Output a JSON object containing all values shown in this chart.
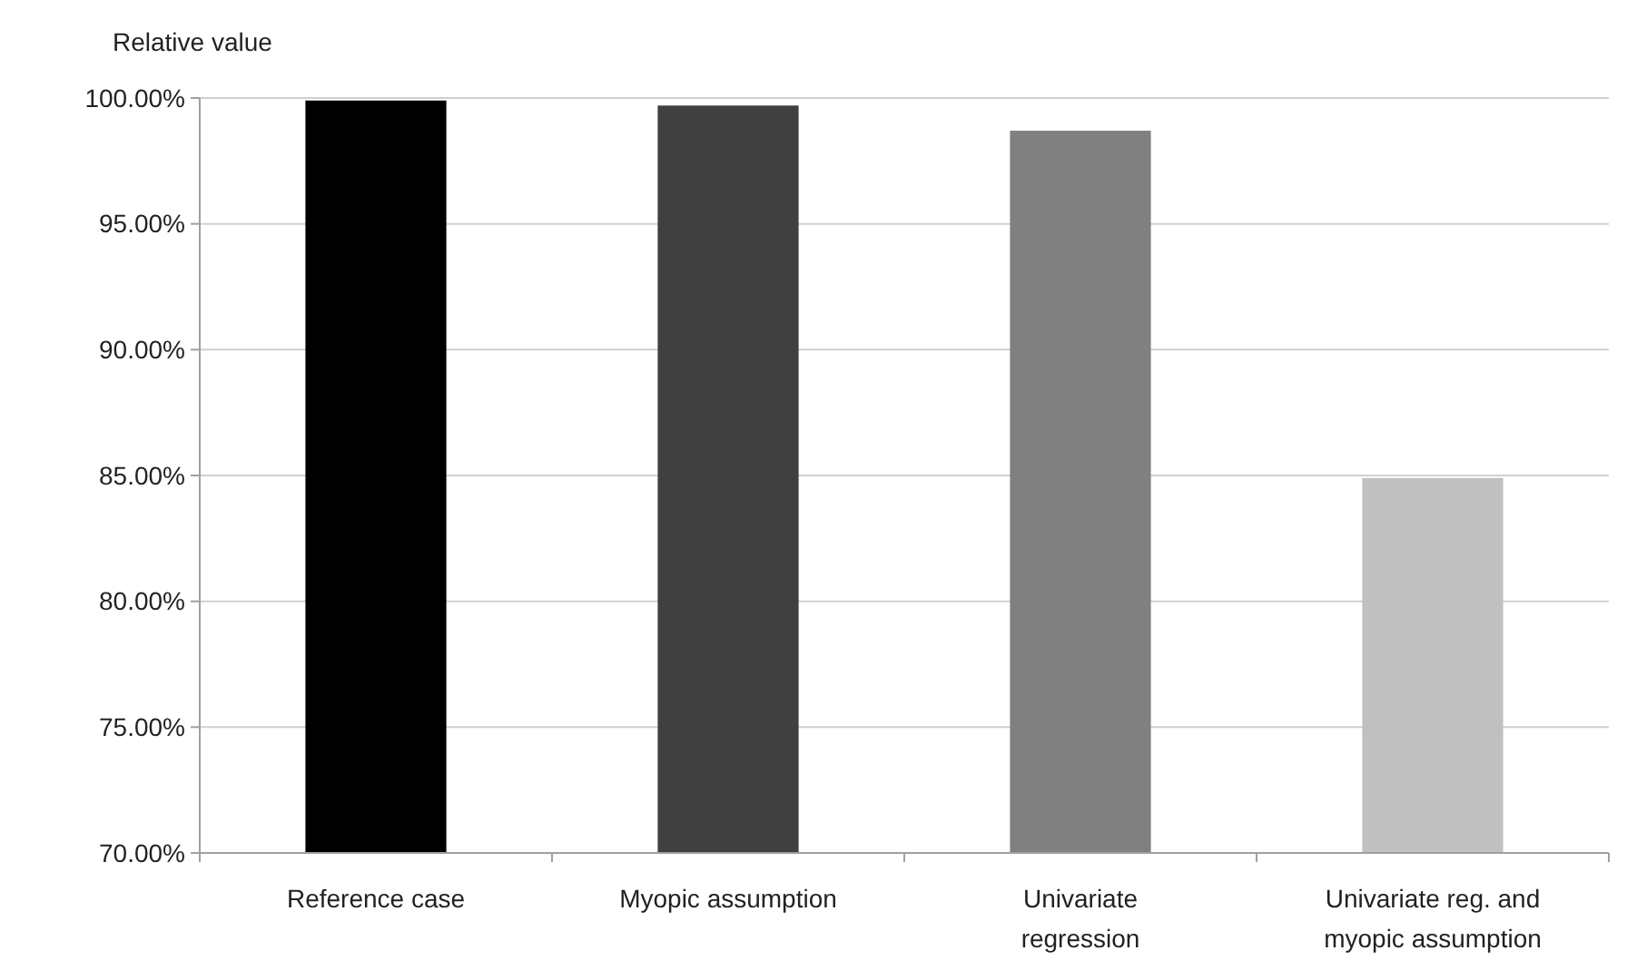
{
  "chart_data": {
    "type": "bar",
    "ylabel": "Relative value",
    "categories": [
      "Reference case",
      "Myopic assumption",
      "Univariate regression",
      "Univariate reg. and myopic assumption"
    ],
    "values": [
      99.9,
      99.7,
      98.7,
      84.9
    ],
    "colors": [
      "#000000",
      "#404040",
      "#808080",
      "#c0c0c0"
    ],
    "ylim": [
      70,
      100
    ],
    "yticks": [
      {
        "value": 70,
        "label": "70.00%"
      },
      {
        "value": 75,
        "label": "75.00%"
      },
      {
        "value": 80,
        "label": "80.00%"
      },
      {
        "value": 85,
        "label": "85.00%"
      },
      {
        "value": 90,
        "label": "90.00%"
      },
      {
        "value": 95,
        "label": "95.00%"
      },
      {
        "value": 100,
        "label": "100.00%"
      }
    ],
    "grid": "y"
  }
}
